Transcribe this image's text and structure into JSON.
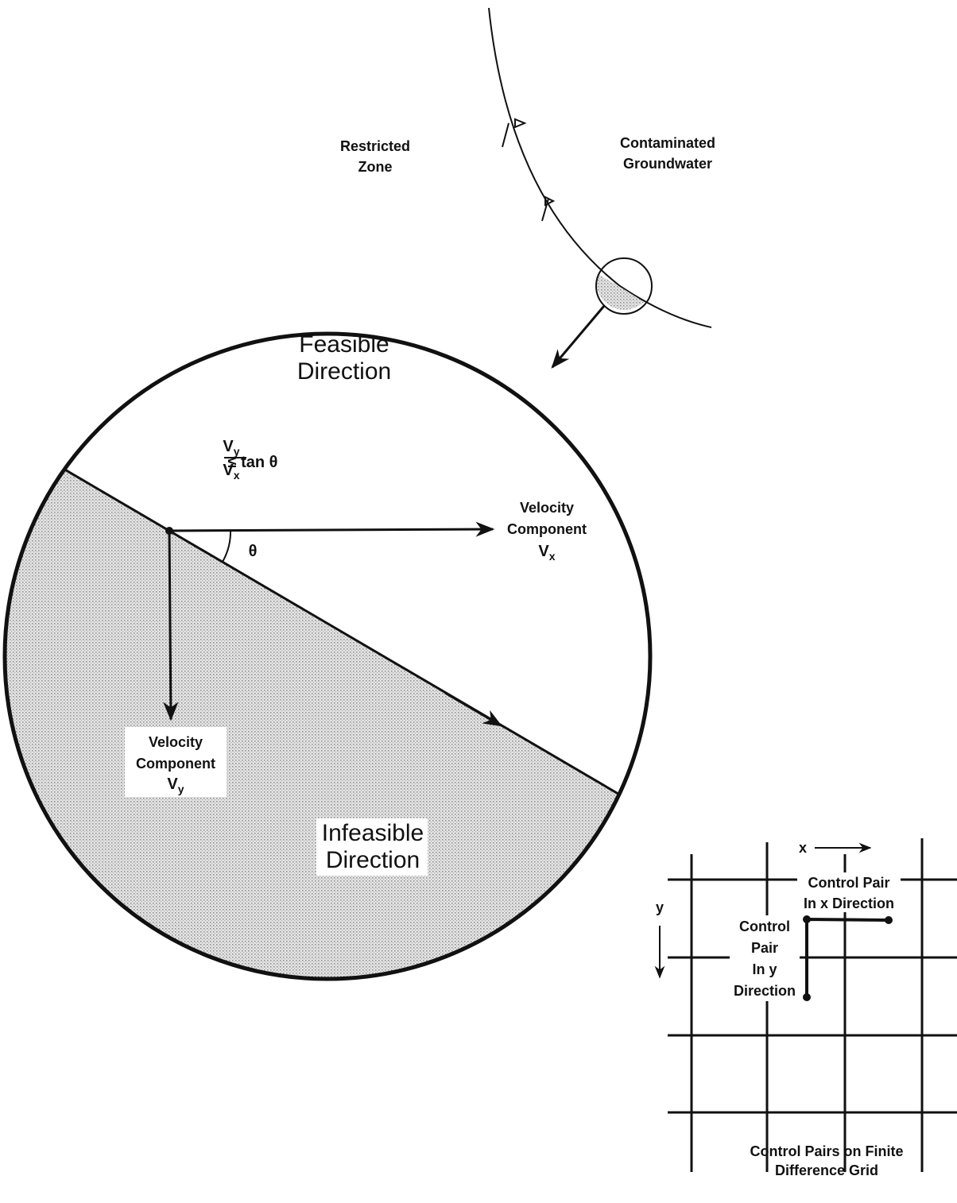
{
  "zone_labels": {
    "restricted": [
      "Restricted",
      "Zone"
    ],
    "contaminated": [
      "Contaminated",
      "Groundwater"
    ]
  },
  "feasible": [
    "Feasible",
    "Direction"
  ],
  "constraint": {
    "numerator": {
      "base": "V",
      "sub": "y"
    },
    "denominator": {
      "base": "V",
      "sub": "x"
    },
    "relation": "≤ tan θ"
  },
  "angle": "θ",
  "vx_label": {
    "lines": [
      "Velocity",
      "Component"
    ],
    "base": "V",
    "sub": "x"
  },
  "vy_label": {
    "lines": [
      "Velocity",
      "Component"
    ],
    "base": "V",
    "sub": "y"
  },
  "infeasible": [
    "Infeasible",
    "Direction"
  ],
  "grid": {
    "x_axis": "x",
    "y_axis": "y",
    "x_pair": [
      "Control Pair",
      "In x Direction"
    ],
    "y_pair": [
      "Control",
      "Pair",
      "In y",
      "Direction"
    ],
    "caption": [
      "Control Pairs on Finite",
      "Difference Grid"
    ]
  }
}
